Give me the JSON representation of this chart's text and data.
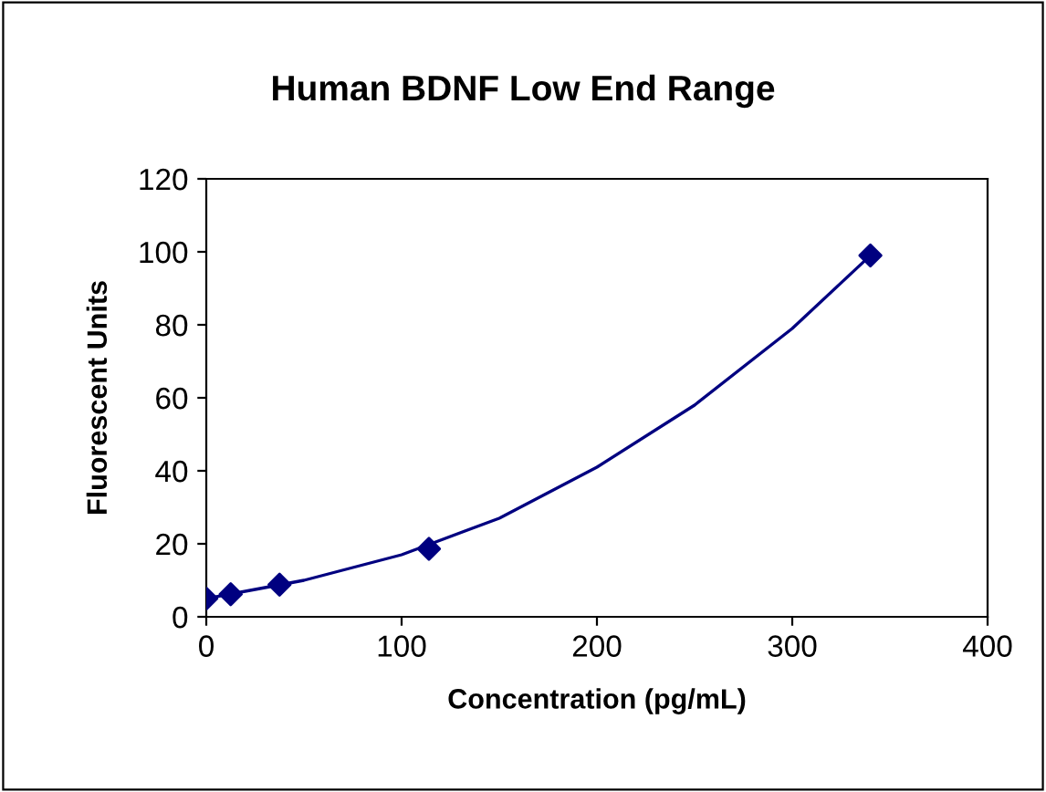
{
  "chart_data": {
    "type": "scatter",
    "title": "Human BDNF Low End Range",
    "xlabel": "Concentration (pg/mL)",
    "ylabel": "Fluorescent Units",
    "series": [
      {
        "color": "#000080",
        "marker": "diamond",
        "x": [
          0,
          12.5,
          37.5,
          114,
          340
        ],
        "values": [
          5,
          6.2,
          8.8,
          18.6,
          99
        ]
      },
      {
        "type": "line",
        "color": "#000080",
        "marker": "none",
        "x": [
          0,
          25,
          50,
          100,
          150,
          200,
          250,
          300,
          340
        ],
        "values": [
          5,
          7.5,
          10,
          17,
          27,
          41,
          58,
          79,
          99
        ]
      }
    ],
    "xlim": [
      0,
      400
    ],
    "xticks": [
      0,
      100,
      200,
      300,
      400
    ],
    "ylim": [
      0,
      120
    ],
    "yticks": [
      0,
      20,
      40,
      60,
      80,
      100,
      120
    ],
    "grid": false,
    "legend": false
  }
}
